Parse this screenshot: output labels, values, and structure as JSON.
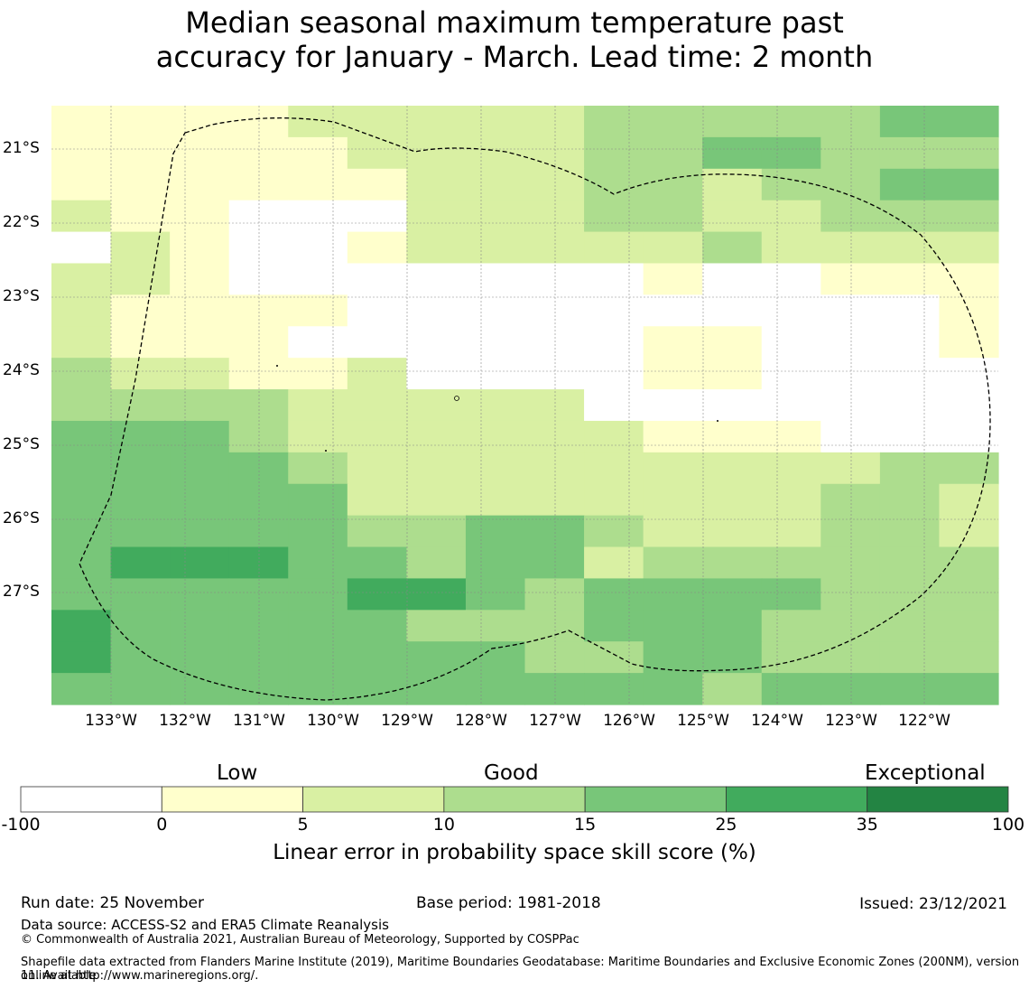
{
  "title_line1": "Median seasonal maximum temperature past",
  "title_line2": "accuracy for January - March. Lead time: 2 month",
  "map": {
    "lon_labels": [
      "133°W",
      "132°W",
      "131°W",
      "130°W",
      "129°W",
      "128°W",
      "127°W",
      "126°W",
      "125°W",
      "124°W",
      "123°W",
      "122°W"
    ],
    "lat_labels": [
      "21°S",
      "22°S",
      "23°S",
      "24°S",
      "25°S",
      "26°S",
      "27°S"
    ],
    "palette": [
      "#ffffff",
      "#ffffcc",
      "#d9f0a3",
      "#addd8e",
      "#78c679",
      "#41ab5d",
      "#238443"
    ],
    "grid_rows": [
      "1111222223333344",
      "1111122223344333",
      "1111112223323344",
      "2110002223322333",
      "0210012222232222",
      "2210000000100111",
      "2111100000000001",
      "2111000000110001",
      "3221120000110000",
      "3333222220000000",
      "4443222222111000",
      "4444322222222233",
      "4444422222222332",
      "4444433443222332",
      "4555443442333333",
      "4444455434444333",
      "5444443334443333",
      "5444444433443333",
      "4444444444434444"
    ]
  },
  "colorbar": {
    "categories": [
      "Low",
      "Good",
      "Exceptional"
    ],
    "ticks": [
      "-100",
      "0",
      "5",
      "10",
      "15",
      "25",
      "35",
      "100"
    ],
    "colors": [
      "#ffffff",
      "#ffffcc",
      "#d9f0a3",
      "#addd8e",
      "#78c679",
      "#41ab5d",
      "#238443"
    ],
    "label": "Linear error in probability space skill score (%)"
  },
  "footer": {
    "run_date": "Run date: 25 November",
    "base_period": "Base period: 1981-2018",
    "issued": "Issued: 23/12/2021",
    "data_source": "Data source: ACCESS-S2 and ERA5 Climate Reanalysis",
    "copyright": "© Commonwealth of Australia 2021, Australian Bureau of Meteorology, Supported by COSPPac",
    "shapefile_line1": "Shapefile data extracted from Flanders Marine Institute (2019), Maritime Boundaries Geodatabase: Maritime Boundaries and Exclusive Economic Zones (200NM), version 11. Available",
    "shapefile_line2": "online at http://www.marineregions.org/."
  }
}
